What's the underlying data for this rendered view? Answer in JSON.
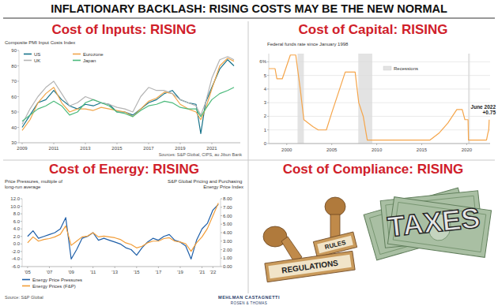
{
  "title": "INFLATIONARY BACKLASH: RISING COSTS MAY BE THE NEW NORMAL",
  "chart_data": [
    {
      "type": "line",
      "title": "Cost of Inputs: RISING",
      "subtitle": "Composite PMI Input Costs Index",
      "source": "Sources: S&P Global, CIPS, au Jibun Bank",
      "x": [
        2009,
        2009.5,
        2010,
        2010.5,
        2011,
        2011.5,
        2012,
        2012.5,
        2013,
        2013.5,
        2014,
        2014.5,
        2015,
        2015.5,
        2016,
        2016.5,
        2017,
        2017.5,
        2018,
        2018.5,
        2019,
        2019.5,
        2020,
        2020.3,
        2020.6,
        2021,
        2021.5,
        2022,
        2022.4
      ],
      "series": [
        {
          "name": "US",
          "color": "#17738a",
          "values": [
            40,
            48,
            56,
            58,
            64,
            58,
            54,
            52,
            55,
            54,
            56,
            55,
            50,
            50,
            48,
            52,
            56,
            58,
            62,
            64,
            58,
            56,
            55,
            36,
            56,
            66,
            78,
            84,
            80
          ]
        },
        {
          "name": "Eurozone",
          "color": "#f0a64a",
          "values": [
            38,
            45,
            56,
            62,
            66,
            56,
            50,
            52,
            52,
            51,
            53,
            52,
            51,
            50,
            47,
            52,
            57,
            59,
            63,
            62,
            55,
            52,
            50,
            45,
            52,
            65,
            80,
            85,
            83
          ]
        },
        {
          "name": "UK",
          "color": "#b4b4b4",
          "values": [
            42,
            52,
            60,
            66,
            70,
            62,
            54,
            56,
            60,
            58,
            56,
            55,
            53,
            52,
            50,
            60,
            66,
            64,
            64,
            62,
            58,
            56,
            54,
            48,
            56,
            72,
            84,
            86,
            84
          ]
        },
        {
          "name": "Japan",
          "color": "#4cba7c",
          "values": [
            44,
            48,
            52,
            54,
            57,
            54,
            48,
            50,
            56,
            58,
            56,
            54,
            50,
            49,
            47,
            51,
            54,
            55,
            57,
            56,
            53,
            52,
            52,
            47,
            52,
            58,
            62,
            64,
            66
          ]
        }
      ],
      "xlim": [
        2008.8,
        2022.8
      ],
      "xticks": [
        2009,
        2011,
        2013,
        2015,
        2017,
        2019,
        2021
      ],
      "ylim": [
        30,
        90
      ],
      "yticks": [
        30,
        40,
        50,
        60,
        70,
        80,
        90
      ],
      "grid": false,
      "legend": "upper left"
    },
    {
      "type": "line",
      "title": "Cost of Capital: RISING",
      "subtitle": "Federal funds rate since January 1998",
      "x": [
        1998,
        1998.7,
        1998.9,
        1999.5,
        2000.4,
        2001.0,
        2001.5,
        2001.9,
        2002.9,
        2003.5,
        2004.4,
        2005.0,
        2006.5,
        2007.6,
        2008.0,
        2008.5,
        2008.95,
        2015.9,
        2016.9,
        2017.9,
        2018.9,
        2019.5,
        2019.8,
        2020.15,
        2020.2,
        2022.2,
        2022.35,
        2022.45,
        2022.5
      ],
      "values": [
        5.5,
        5.5,
        4.75,
        4.75,
        6.5,
        6.5,
        4.0,
        1.75,
        1.25,
        1.0,
        1.0,
        2.25,
        5.25,
        5.25,
        3.0,
        2.0,
        0.25,
        0.25,
        0.75,
        1.5,
        2.5,
        2.5,
        1.75,
        1.75,
        0.25,
        0.25,
        0.75,
        1.0,
        1.75
      ],
      "color": "#f5a54a",
      "recessions": {
        "name": "Recessions",
        "color": "#e3e3e3",
        "spans": [
          [
            2001.2,
            2001.9
          ],
          [
            2007.95,
            2009.5
          ],
          [
            2020.15,
            2020.35
          ]
        ]
      },
      "annotation": [
        "June 2022",
        "+0.75"
      ],
      "xlim": [
        1998,
        2022.6
      ],
      "xticks": [
        2000,
        2005,
        2010,
        2015,
        2020
      ],
      "ylim": [
        0,
        6.6
      ],
      "yticks": [
        0,
        1,
        2,
        3,
        4,
        5,
        {
          "value": 6,
          "label": "6%"
        }
      ],
      "grid": true,
      "legend": "upper center"
    },
    {
      "type": "line",
      "title": "Cost of Energy: RISING",
      "ylabel": "Price Pressures, multiple of long-run average",
      "y2label": "S&P Global Pricing and Purchasing Energy Price Index",
      "source": "Source: S&P Global",
      "x": [
        2005,
        2005.5,
        2006,
        2006.5,
        2007,
        2007.5,
        2008,
        2008.5,
        2009,
        2009.5,
        2010,
        2010.5,
        2011,
        2011.5,
        2012,
        2012.5,
        2013,
        2013.5,
        2014,
        2014.5,
        2015,
        2015.5,
        2016,
        2016.5,
        2017,
        2017.5,
        2018,
        2018.5,
        2019,
        2019.5,
        2020,
        2020.5,
        2021,
        2021.5,
        2022,
        2022.5
      ],
      "series": [
        {
          "name": "Energy Price Pressures",
          "color": "#1f5fa8",
          "values": [
            2.0,
            3.5,
            1.5,
            2.0,
            2.5,
            3.0,
            4.0,
            7.0,
            -4.0,
            -1.5,
            1.5,
            2.0,
            3.0,
            1.0,
            1.5,
            1.0,
            0.5,
            0.0,
            -1.0,
            -1.5,
            -3.0,
            -1.0,
            0.5,
            1.5,
            1.0,
            2.0,
            2.5,
            1.0,
            0.5,
            -0.5,
            -4.0,
            1.0,
            4.0,
            5.5,
            9.0,
            10.5
          ]
        },
        {
          "name": "Energy Prices (F&P)",
          "color": "#f29d38",
          "axis": "y2",
          "values": [
            2.8,
            3.5,
            3.0,
            3.2,
            3.3,
            3.5,
            3.8,
            4.8,
            2.5,
            3.0,
            3.5,
            3.6,
            4.0,
            3.5,
            3.6,
            3.5,
            3.4,
            3.2,
            2.8,
            2.6,
            2.2,
            2.4,
            2.8,
            3.0,
            3.0,
            3.3,
            3.4,
            3.0,
            2.9,
            2.7,
            1.8,
            2.8,
            3.5,
            4.5,
            6.0,
            7.5
          ]
        }
      ],
      "xlim": [
        2004.5,
        2022.7
      ],
      "xticks": [
        {
          "value": 2005,
          "label": "'05"
        },
        {
          "value": 2007,
          "label": "'07"
        },
        {
          "value": 2009,
          "label": "'09"
        },
        {
          "value": 2011,
          "label": "'11"
        },
        {
          "value": 2013,
          "label": "'13"
        },
        {
          "value": 2015,
          "label": "'15"
        },
        {
          "value": 2017,
          "label": "'17"
        },
        {
          "value": 2019,
          "label": "'19"
        },
        {
          "value": 2021,
          "label": "'21"
        },
        {
          "value": 2022,
          "label": "'22"
        }
      ],
      "ylim": [
        -6,
        12
      ],
      "yticks": [
        {
          "value": -6,
          "label": "-6.0"
        },
        {
          "value": -4,
          "label": "-4.0"
        },
        {
          "value": -2,
          "label": "-2.0"
        },
        {
          "value": 0,
          "label": "0.0"
        },
        {
          "value": 2,
          "label": "2.0"
        },
        {
          "value": 4,
          "label": "4.0"
        },
        {
          "value": 6,
          "label": "6.0"
        },
        {
          "value": 8,
          "label": "8.0"
        },
        {
          "value": 10,
          "label": "10.0"
        },
        {
          "value": 12,
          "label": "12.0"
        }
      ],
      "y2lim": [
        0,
        8
      ],
      "y2ticks": [
        {
          "value": 0,
          "label": "0.00"
        },
        {
          "value": 1,
          "label": "1.00"
        },
        {
          "value": 2,
          "label": "2.00"
        },
        {
          "value": 3,
          "label": "3.00"
        },
        {
          "value": 4,
          "label": "4.00"
        },
        {
          "value": 5,
          "label": "5.00"
        },
        {
          "value": 6,
          "label": "6.00"
        },
        {
          "value": 7,
          "label": "7.00"
        },
        {
          "value": 8,
          "label": "8.00"
        }
      ],
      "grid": false,
      "legend": "bottom"
    }
  ],
  "compliance": {
    "title": "Cost of Compliance: RISING",
    "labels": [
      "REGULATIONS",
      "RULES",
      "TAXES"
    ]
  },
  "footer": [
    "MEHLMAN CASTAGNETTI",
    "ROSEN & THOMAS"
  ]
}
